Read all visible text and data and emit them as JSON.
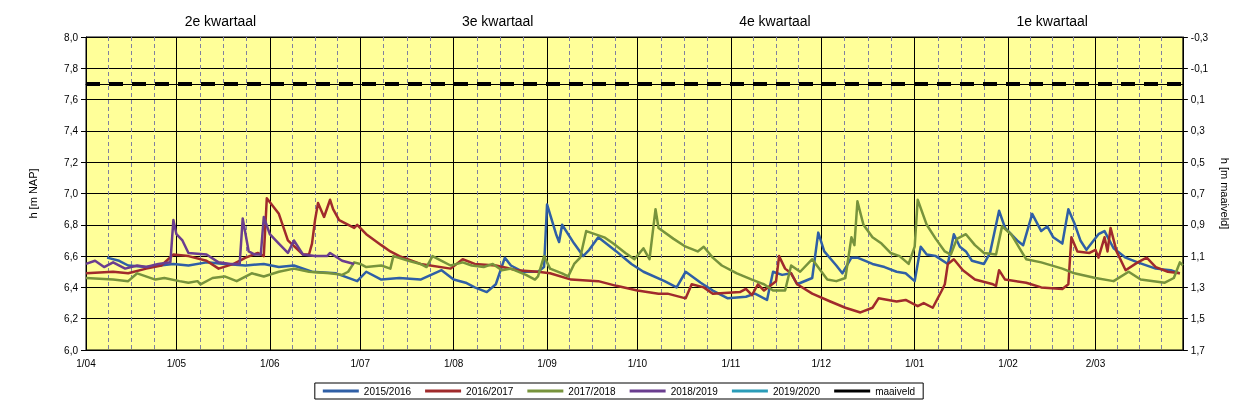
{
  "chart_data": {
    "type": "line",
    "ylabel": "h [m NAP]",
    "y2label": "h [m maaiveld]",
    "annotations": [
      "2e kwartaal",
      "3e kwartaal",
      "4e kwartaal",
      "1e kwartaal"
    ],
    "xlim": [
      "2017-04-01",
      "2018-03-31"
    ],
    "xticks": [
      {
        "value": "2017-04-01",
        "label": "1/04"
      },
      {
        "value": "2017-05-01",
        "label": "1/05"
      },
      {
        "value": "2017-06-01",
        "label": "1/06"
      },
      {
        "value": "2017-07-01",
        "label": "1/07"
      },
      {
        "value": "2017-08-01",
        "label": "1/08"
      },
      {
        "value": "2017-09-01",
        "label": "1/09"
      },
      {
        "value": "2017-10-01",
        "label": "1/10"
      },
      {
        "value": "2017-11-01",
        "label": "1/11"
      },
      {
        "value": "2017-12-01",
        "label": "1/12"
      },
      {
        "value": "2018-01-01",
        "label": "1/01"
      },
      {
        "value": "2018-02-01",
        "label": "1/02"
      },
      {
        "value": "2018-03-02",
        "label": "2/03"
      }
    ],
    "ylim": [
      6,
      8
    ],
    "yticks": [
      {
        "value": 6,
        "label": "6,0"
      },
      {
        "value": 6.2,
        "label": "6,2"
      },
      {
        "value": 6.4,
        "label": "6,4"
      },
      {
        "value": 6.6,
        "label": "6,6"
      },
      {
        "value": 6.8,
        "label": "6,8"
      },
      {
        "value": 7,
        "label": "7,0"
      },
      {
        "value": 7.2,
        "label": "7,2"
      },
      {
        "value": 7.4,
        "label": "7,4"
      },
      {
        "value": 7.6,
        "label": "7,6"
      },
      {
        "value": 7.8,
        "label": "7,8"
      },
      {
        "value": 8,
        "label": "8,0"
      }
    ],
    "y2lim": [
      1.7,
      -0.3
    ],
    "y2ticks": [
      {
        "value": 1.7,
        "label": "1,7"
      },
      {
        "value": 1.5,
        "label": "1,5"
      },
      {
        "value": 1.3,
        "label": "1,3"
      },
      {
        "value": 1.1,
        "label": "1,1"
      },
      {
        "value": 0.9,
        "label": "0,9"
      },
      {
        "value": 0.7,
        "label": "0,7"
      },
      {
        "value": 0.5,
        "label": "0,5"
      },
      {
        "value": 0.3,
        "label": "0,3"
      },
      {
        "value": 0.1,
        "label": "0,1"
      },
      {
        "value": -0.1,
        "label": "-0,1"
      },
      {
        "value": -0.3,
        "label": "-0,3"
      }
    ],
    "grid": true,
    "legend": "bottom",
    "marker": "none",
    "line_style": "solid",
    "series": [
      {
        "name": "2015/2016",
        "color": "#2f5fa6",
        "x": [
          "2017-04-08",
          "2017-04-12",
          "2017-04-15",
          "2017-04-21",
          "2017-04-30",
          "2017-05-05",
          "2017-05-11",
          "2017-05-17",
          "2017-05-24",
          "2017-05-30",
          "2017-06-04",
          "2017-06-09",
          "2017-06-15",
          "2017-06-23",
          "2017-06-30",
          "2017-07-03",
          "2017-07-08",
          "2017-07-14",
          "2017-07-21",
          "2017-07-28",
          "2017-08-01",
          "2017-08-05",
          "2017-08-08",
          "2017-08-12",
          "2017-08-15",
          "2017-08-18",
          "2017-08-20",
          "2017-08-24",
          "2017-08-29",
          "2017-08-31",
          "2017-09-01",
          "2017-09-04",
          "2017-09-05",
          "2017-09-06",
          "2017-09-10",
          "2017-09-13",
          "2017-09-15",
          "2017-09-18",
          "2017-09-24",
          "2017-09-29",
          "2017-10-03",
          "2017-10-10",
          "2017-10-14",
          "2017-10-17",
          "2017-10-22",
          "2017-10-26",
          "2017-10-31",
          "2017-11-06",
          "2017-11-09",
          "2017-11-13",
          "2017-11-15",
          "2017-11-18",
          "2017-11-21",
          "2017-11-23",
          "2017-11-28",
          "2017-11-30",
          "2017-12-02",
          "2017-12-06",
          "2017-12-08",
          "2017-12-11",
          "2017-12-13",
          "2017-12-18",
          "2017-12-22",
          "2017-12-26",
          "2017-12-29",
          "2018-01-01",
          "2018-01-03",
          "2018-01-05",
          "2018-01-08",
          "2018-01-12",
          "2018-01-14",
          "2018-01-16",
          "2018-01-18",
          "2018-01-20",
          "2018-01-24",
          "2018-01-26",
          "2018-01-29",
          "2018-01-31",
          "2018-02-04",
          "2018-02-06",
          "2018-02-09",
          "2018-02-12",
          "2018-02-14",
          "2018-02-16",
          "2018-02-19",
          "2018-02-21",
          "2018-02-23",
          "2018-02-25",
          "2018-02-27",
          "2018-03-03",
          "2018-03-05",
          "2018-03-08",
          "2018-03-12",
          "2018-03-16",
          "2018-03-22",
          "2018-03-27",
          "2018-03-30"
        ],
        "values": [
          6.59,
          6.57,
          6.54,
          6.53,
          6.55,
          6.54,
          6.56,
          6.55,
          6.54,
          6.55,
          6.53,
          6.54,
          6.5,
          6.49,
          6.44,
          6.5,
          6.45,
          6.46,
          6.45,
          6.51,
          6.45,
          6.43,
          6.4,
          6.37,
          6.42,
          6.59,
          6.54,
          6.5,
          6.5,
          6.53,
          6.93,
          6.74,
          6.69,
          6.8,
          6.68,
          6.6,
          6.64,
          6.72,
          6.63,
          6.55,
          6.5,
          6.44,
          6.4,
          6.5,
          6.43,
          6.38,
          6.33,
          6.34,
          6.36,
          6.32,
          6.5,
          6.48,
          6.49,
          6.42,
          6.46,
          6.75,
          6.63,
          6.54,
          6.49,
          6.59,
          6.59,
          6.55,
          6.53,
          6.5,
          6.49,
          6.44,
          6.66,
          6.61,
          6.6,
          6.55,
          6.74,
          6.66,
          6.63,
          6.57,
          6.55,
          6.62,
          6.89,
          6.78,
          6.7,
          6.67,
          6.87,
          6.76,
          6.79,
          6.72,
          6.68,
          6.9,
          6.81,
          6.7,
          6.64,
          6.74,
          6.76,
          6.65,
          6.59,
          6.56,
          6.52,
          6.51,
          6.49
        ]
      },
      {
        "name": "2016/2017",
        "color": "#a02a2c",
        "x": [
          "2017-04-01",
          "2017-04-10",
          "2017-04-15",
          "2017-04-21",
          "2017-04-26",
          "2017-04-30",
          "2017-05-05",
          "2017-05-11",
          "2017-05-15",
          "2017-05-20",
          "2017-05-24",
          "2017-05-28",
          "2017-05-30",
          "2017-05-31",
          "2017-06-04",
          "2017-06-07",
          "2017-06-12",
          "2017-06-14",
          "2017-06-15",
          "2017-06-16",
          "2017-06-17",
          "2017-06-19",
          "2017-06-21",
          "2017-06-22",
          "2017-06-24",
          "2017-06-29",
          "2017-06-30",
          "2017-07-03",
          "2017-07-08",
          "2017-07-11",
          "2017-07-14",
          "2017-07-21",
          "2017-07-31",
          "2017-08-04",
          "2017-08-08",
          "2017-08-15",
          "2017-08-22",
          "2017-08-29",
          "2017-09-02",
          "2017-09-09",
          "2017-09-18",
          "2017-09-24",
          "2017-10-01",
          "2017-10-08",
          "2017-10-11",
          "2017-10-17",
          "2017-10-19",
          "2017-10-23",
          "2017-10-26",
          "2017-11-04",
          "2017-11-06",
          "2017-11-08",
          "2017-11-10",
          "2017-11-12",
          "2017-11-16",
          "2017-11-17",
          "2017-11-19",
          "2017-11-21",
          "2017-11-23",
          "2017-11-28",
          "2017-12-04",
          "2017-12-09",
          "2017-12-14",
          "2017-12-18",
          "2017-12-20",
          "2017-12-26",
          "2017-12-29",
          "2018-01-02",
          "2018-01-04",
          "2018-01-07",
          "2018-01-10",
          "2018-01-11",
          "2018-01-12",
          "2018-01-14",
          "2018-01-17",
          "2018-01-21",
          "2018-01-27",
          "2018-01-28",
          "2018-01-29",
          "2018-01-31",
          "2018-02-07",
          "2018-02-12",
          "2018-02-19",
          "2018-02-21",
          "2018-02-22",
          "2018-02-24",
          "2018-02-28",
          "2018-03-02",
          "2018-03-03",
          "2018-03-05",
          "2018-03-06",
          "2018-03-07",
          "2018-03-09",
          "2018-03-12",
          "2018-03-16",
          "2018-03-19",
          "2018-03-22",
          "2018-03-26",
          "2018-03-30"
        ],
        "values": [
          6.49,
          6.5,
          6.49,
          6.52,
          6.54,
          6.61,
          6.6,
          6.57,
          6.52,
          6.55,
          6.59,
          6.62,
          6.6,
          6.97,
          6.87,
          6.7,
          6.61,
          6.61,
          6.68,
          6.83,
          6.94,
          6.85,
          6.96,
          6.9,
          6.83,
          6.78,
          6.8,
          6.74,
          6.67,
          6.63,
          6.6,
          6.55,
          6.52,
          6.58,
          6.55,
          6.54,
          6.51,
          6.5,
          6.49,
          6.45,
          6.44,
          6.41,
          6.38,
          6.36,
          6.36,
          6.33,
          6.42,
          6.4,
          6.36,
          6.37,
          6.39,
          6.35,
          6.42,
          6.38,
          6.44,
          6.6,
          6.52,
          6.49,
          6.42,
          6.36,
          6.31,
          6.27,
          6.24,
          6.27,
          6.33,
          6.31,
          6.32,
          6.28,
          6.3,
          6.27,
          6.38,
          6.42,
          6.55,
          6.58,
          6.51,
          6.45,
          6.42,
          6.41,
          6.51,
          6.45,
          6.43,
          6.4,
          6.39,
          6.42,
          6.72,
          6.63,
          6.62,
          6.64,
          6.59,
          6.72,
          6.63,
          6.78,
          6.63,
          6.51,
          6.56,
          6.59,
          6.53,
          6.5,
          6.49
        ]
      },
      {
        "name": "2017/2018",
        "color": "#77933c",
        "x": [
          "2017-04-01",
          "2017-04-10",
          "2017-04-15",
          "2017-04-18",
          "2017-04-24",
          "2017-04-27",
          "2017-05-02",
          "2017-05-05",
          "2017-05-08",
          "2017-05-09",
          "2017-05-13",
          "2017-05-17",
          "2017-05-21",
          "2017-05-26",
          "2017-05-30",
          "2017-06-04",
          "2017-06-09",
          "2017-06-14",
          "2017-06-21",
          "2017-06-25",
          "2017-06-27",
          "2017-06-29",
          "2017-07-01",
          "2017-07-03",
          "2017-07-08",
          "2017-07-11",
          "2017-07-12",
          "2017-07-17",
          "2017-07-21",
          "2017-07-23",
          "2017-07-25",
          "2017-07-28",
          "2017-07-31",
          "2017-08-04",
          "2017-08-07",
          "2017-08-11",
          "2017-08-14",
          "2017-08-17",
          "2017-08-20",
          "2017-08-25",
          "2017-08-28",
          "2017-08-29",
          "2017-08-31",
          "2017-09-02",
          "2017-09-06",
          "2017-09-08",
          "2017-09-10",
          "2017-09-12",
          "2017-09-14",
          "2017-09-20",
          "2017-09-23",
          "2017-09-27",
          "2017-09-30",
          "2017-10-03",
          "2017-10-05",
          "2017-10-07",
          "2017-10-08",
          "2017-10-13",
          "2017-10-17",
          "2017-10-21",
          "2017-10-23",
          "2017-10-26",
          "2017-10-29",
          "2017-11-03",
          "2017-11-08",
          "2017-11-12",
          "2017-11-15",
          "2017-11-19",
          "2017-11-21",
          "2017-11-24",
          "2017-11-28",
          "2017-12-03",
          "2017-12-06",
          "2017-12-09",
          "2017-12-11",
          "2017-12-12",
          "2017-12-13",
          "2017-12-15",
          "2017-12-18",
          "2017-12-21",
          "2017-12-24",
          "2017-12-27",
          "2017-12-30",
          "2018-01-01",
          "2018-01-02",
          "2018-01-05",
          "2018-01-08",
          "2018-01-11",
          "2018-01-13",
          "2018-01-15",
          "2018-01-18",
          "2018-01-21",
          "2018-01-24",
          "2018-01-28",
          "2018-01-30",
          "2018-02-02",
          "2018-02-07",
          "2018-02-12",
          "2018-02-19",
          "2018-02-23",
          "2018-03-02",
          "2018-03-08",
          "2018-03-13",
          "2018-03-17",
          "2018-03-25",
          "2018-03-28",
          "2018-03-30",
          "2018-03-31"
        ],
        "values": [
          6.46,
          6.45,
          6.44,
          6.49,
          6.45,
          6.46,
          6.44,
          6.43,
          6.44,
          6.42,
          6.46,
          6.47,
          6.44,
          6.49,
          6.47,
          6.5,
          6.52,
          6.5,
          6.49,
          6.48,
          6.5,
          6.56,
          6.55,
          6.53,
          6.54,
          6.52,
          6.6,
          6.57,
          6.55,
          6.53,
          6.6,
          6.57,
          6.54,
          6.56,
          6.54,
          6.53,
          6.55,
          6.51,
          6.52,
          6.48,
          6.45,
          6.47,
          6.6,
          6.52,
          6.49,
          6.47,
          6.55,
          6.59,
          6.76,
          6.72,
          6.68,
          6.62,
          6.58,
          6.65,
          6.58,
          6.9,
          6.78,
          6.71,
          6.66,
          6.63,
          6.66,
          6.59,
          6.54,
          6.49,
          6.45,
          6.42,
          6.38,
          6.38,
          6.54,
          6.5,
          6.58,
          6.45,
          6.44,
          6.46,
          6.72,
          6.67,
          6.95,
          6.8,
          6.72,
          6.68,
          6.62,
          6.6,
          6.55,
          6.66,
          6.96,
          6.8,
          6.71,
          6.63,
          6.61,
          6.71,
          6.74,
          6.67,
          6.62,
          6.61,
          6.79,
          6.74,
          6.58,
          6.56,
          6.52,
          6.49,
          6.46,
          6.44,
          6.5,
          6.45,
          6.43,
          6.46,
          6.56,
          6.54
        ]
      },
      {
        "name": "2018/2019",
        "color": "#6a3d8f",
        "x": [
          "2017-04-01",
          "2017-04-04",
          "2017-04-07",
          "2017-04-10",
          "2017-04-14",
          "2017-04-18",
          "2017-04-21",
          "2017-04-25",
          "2017-04-29",
          "2017-04-30",
          "2017-05-01",
          "2017-05-03",
          "2017-05-05",
          "2017-05-11",
          "2017-05-15",
          "2017-05-19",
          "2017-05-22",
          "2017-05-23",
          "2017-05-25",
          "2017-05-27",
          "2017-05-29",
          "2017-05-30",
          "2017-06-01",
          "2017-06-04",
          "2017-06-07",
          "2017-06-09",
          "2017-06-12",
          "2017-06-16",
          "2017-06-20",
          "2017-06-21",
          "2017-06-25",
          "2017-06-29"
        ],
        "values": [
          6.55,
          6.57,
          6.53,
          6.56,
          6.52,
          6.54,
          6.53,
          6.55,
          6.56,
          6.83,
          6.74,
          6.7,
          6.62,
          6.61,
          6.56,
          6.55,
          6.55,
          6.84,
          6.63,
          6.61,
          6.61,
          6.85,
          6.74,
          6.68,
          6.62,
          6.7,
          6.61,
          6.6,
          6.6,
          6.62,
          6.57,
          6.55
        ]
      },
      {
        "name": "2019/2020",
        "color": "#2a9cb8"
      },
      {
        "name": "maaiveld",
        "color": "#000000",
        "x": [
          "2017-04-01",
          "2018-03-31"
        ],
        "values": [
          7.7,
          7.7
        ],
        "line_style": "dashed"
      }
    ]
  }
}
